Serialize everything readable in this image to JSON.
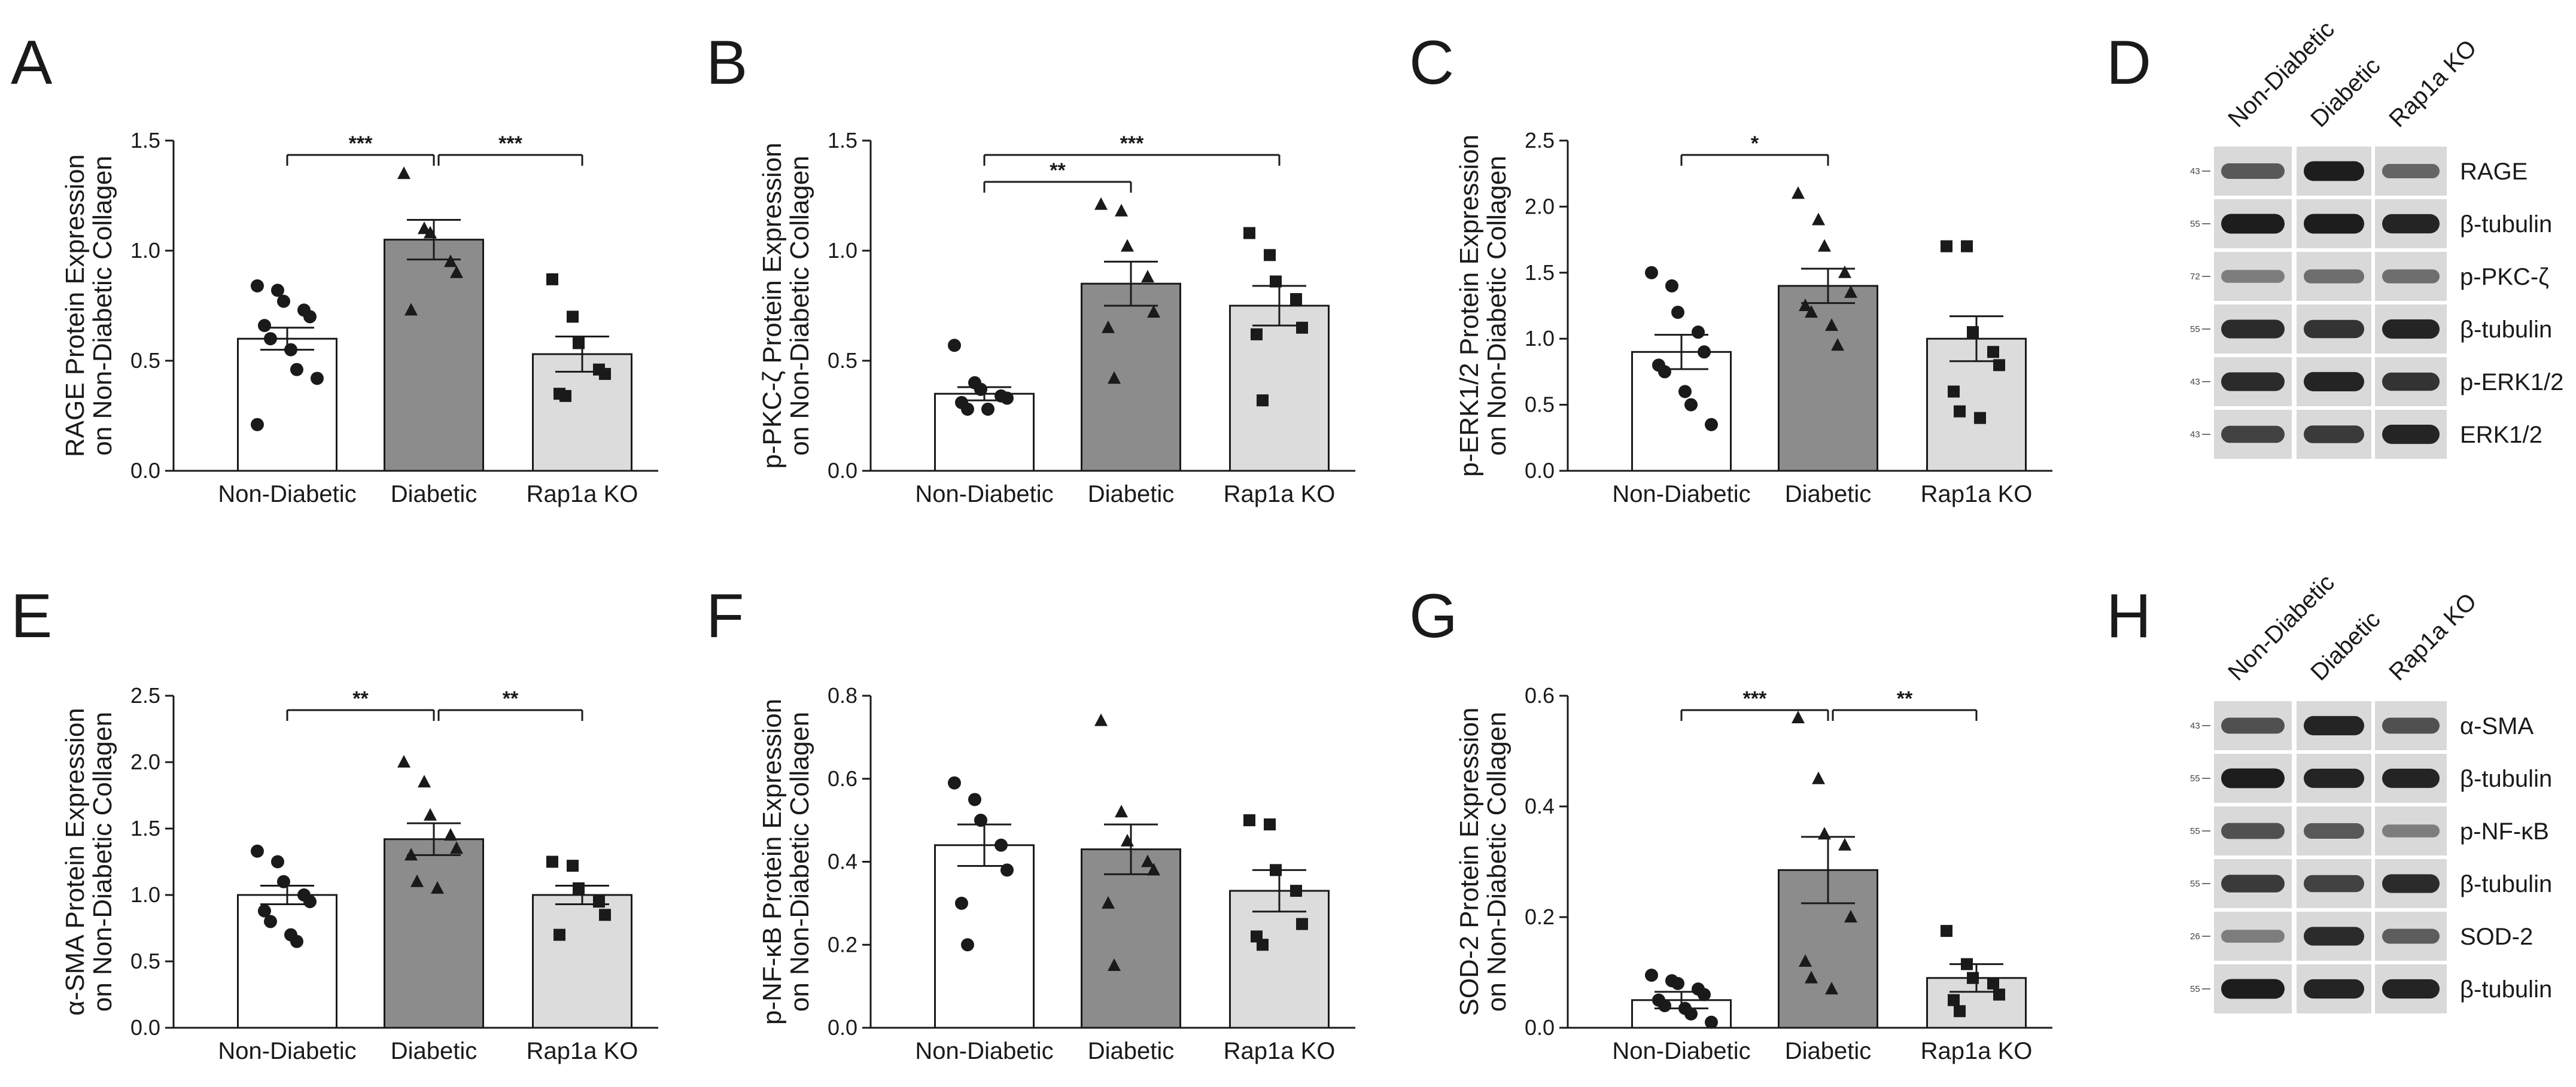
{
  "chart_data": [
    {
      "panel": "A",
      "type": "bar",
      "categories": [
        "Non-Diabetic",
        "Diabetic",
        "Rap1a KO"
      ],
      "values": [
        0.6,
        1.05,
        0.53
      ],
      "sem": [
        0.05,
        0.09,
        0.08
      ],
      "ylabel_1": "RAGE Protein Expression",
      "ylabel_2": "on Non-Diabetic Collagen",
      "ylim": [
        0,
        1.5
      ],
      "yticks": [
        "0.0",
        "0.5",
        "1.0",
        "1.5"
      ],
      "points": [
        [
          0.84,
          0.82,
          0.77,
          0.73,
          0.7,
          0.66,
          0.6,
          0.55,
          0.46,
          0.42,
          0.21
        ],
        [
          1.35,
          1.1,
          1.08,
          0.95,
          0.9,
          0.73
        ],
        [
          0.87,
          0.7,
          0.58,
          0.46,
          0.44,
          0.35,
          0.34
        ]
      ],
      "significance": [
        {
          "from": 0,
          "to": 1,
          "label": "***"
        },
        {
          "from": 1,
          "to": 2,
          "label": "***"
        }
      ]
    },
    {
      "panel": "B",
      "type": "bar",
      "categories": [
        "Non-Diabetic",
        "Diabetic",
        "Rap1a KO"
      ],
      "values": [
        0.35,
        0.85,
        0.75
      ],
      "sem": [
        0.03,
        0.1,
        0.09
      ],
      "ylabel_1": "p-PKC-ζ Protein Expression",
      "ylabel_2": "on Non-Diabetic Collagen",
      "ylim": [
        0,
        1.5
      ],
      "yticks": [
        "0.0",
        "0.5",
        "1.0",
        "1.5"
      ],
      "points": [
        [
          0.57,
          0.4,
          0.37,
          0.34,
          0.33,
          0.31,
          0.28,
          0.28
        ],
        [
          1.21,
          1.18,
          1.02,
          0.88,
          0.72,
          0.65,
          0.42
        ],
        [
          1.08,
          0.98,
          0.86,
          0.78,
          0.65,
          0.62,
          0.32
        ]
      ],
      "significance": [
        {
          "from": 0,
          "to": 1,
          "label": "**"
        },
        {
          "from": 0,
          "to": 2,
          "label": "***"
        }
      ]
    },
    {
      "panel": "C",
      "type": "bar",
      "categories": [
        "Non-Diabetic",
        "Diabetic",
        "Rap1a KO"
      ],
      "values": [
        0.9,
        1.4,
        1.0
      ],
      "sem": [
        0.13,
        0.13,
        0.17
      ],
      "ylabel_1": "p-ERK1/2 Protein Expression",
      "ylabel_2": "on Non-Diabetic Collagen",
      "ylim": [
        0,
        2.5
      ],
      "yticks": [
        "0.0",
        "0.5",
        "1.0",
        "1.5",
        "2.0",
        "2.5"
      ],
      "points": [
        [
          1.5,
          1.4,
          1.2,
          1.05,
          0.9,
          0.8,
          0.75,
          0.6,
          0.5,
          0.35
        ],
        [
          2.1,
          1.9,
          1.7,
          1.5,
          1.35,
          1.25,
          1.2,
          1.1,
          0.95
        ],
        [
          1.7,
          1.7,
          1.05,
          0.9,
          0.8,
          0.6,
          0.45,
          0.4
        ]
      ],
      "significance": [
        {
          "from": 0,
          "to": 1,
          "label": "*"
        }
      ]
    },
    {
      "panel": "E",
      "type": "bar",
      "categories": [
        "Non-Diabetic",
        "Diabetic",
        "Rap1a KO"
      ],
      "values": [
        1.0,
        1.42,
        1.0
      ],
      "sem": [
        0.07,
        0.12,
        0.07
      ],
      "ylabel_1": "α-SMA Protein Expression",
      "ylabel_2": "on Non-Diabetic Collagen",
      "ylim": [
        0,
        2.5
      ],
      "yticks": [
        "0.0",
        "0.5",
        "1.0",
        "1.5",
        "2.0",
        "2.5"
      ],
      "points": [
        [
          1.33,
          1.25,
          1.1,
          1.0,
          0.95,
          0.88,
          0.8,
          0.7,
          0.65
        ],
        [
          2.0,
          1.85,
          1.6,
          1.45,
          1.35,
          1.3,
          1.1,
          1.05
        ],
        [
          1.25,
          1.22,
          1.05,
          0.95,
          0.85,
          0.7
        ]
      ],
      "significance": [
        {
          "from": 0,
          "to": 1,
          "label": "**"
        },
        {
          "from": 1,
          "to": 2,
          "label": "**"
        }
      ]
    },
    {
      "panel": "F",
      "type": "bar",
      "categories": [
        "Non-Diabetic",
        "Diabetic",
        "Rap1a KO"
      ],
      "values": [
        0.44,
        0.43,
        0.33
      ],
      "sem": [
        0.05,
        0.06,
        0.05
      ],
      "ylabel_1": "p-NF-κB Protein Expression",
      "ylabel_2": "on Non-Diabetic Collagen",
      "ylim": [
        0,
        0.8
      ],
      "yticks": [
        "0.0",
        "0.2",
        "0.4",
        "0.6",
        "0.8"
      ],
      "points": [
        [
          0.59,
          0.55,
          0.5,
          0.44,
          0.38,
          0.3,
          0.2
        ],
        [
          0.74,
          0.52,
          0.45,
          0.4,
          0.38,
          0.3,
          0.15
        ],
        [
          0.5,
          0.49,
          0.38,
          0.33,
          0.25,
          0.22,
          0.2
        ]
      ],
      "significance": []
    },
    {
      "panel": "G",
      "type": "bar",
      "categories": [
        "Non-Diabetic",
        "Diabetic",
        "Rap1a KO"
      ],
      "values": [
        0.05,
        0.285,
        0.09
      ],
      "sem": [
        0.015,
        0.06,
        0.025
      ],
      "ylabel_1": "SOD-2 Protein Expression",
      "ylabel_2": "on Non-Diabetic Collagen",
      "ylim": [
        0,
        0.6
      ],
      "yticks": [
        "0.0",
        "0.2",
        "0.4",
        "0.6"
      ],
      "points": [
        [
          0.095,
          0.085,
          0.08,
          0.07,
          0.06,
          0.05,
          0.04,
          0.035,
          0.025,
          0.01
        ],
        [
          0.56,
          0.45,
          0.35,
          0.33,
          0.2,
          0.12,
          0.09,
          0.07
        ],
        [
          0.175,
          0.115,
          0.09,
          0.08,
          0.06,
          0.05,
          0.03
        ]
      ],
      "significance": [
        {
          "from": 0,
          "to": 1,
          "label": "***"
        },
        {
          "from": 1,
          "to": 2,
          "label": "**"
        }
      ]
    }
  ],
  "panel_letters": {
    "A": "A",
    "B": "B",
    "C": "C",
    "D": "D",
    "E": "E",
    "F": "F",
    "G": "G",
    "H": "H"
  },
  "blots": [
    {
      "panel": "D",
      "columns": [
        "Non-Diabetic",
        "Diabetic",
        "Rap1a KO"
      ],
      "rows": [
        {
          "label": "RAGE",
          "mw": "43",
          "intensity": [
            0.55,
            0.95,
            0.45
          ]
        },
        {
          "label": "β-tubulin",
          "mw": "55",
          "intensity": [
            0.95,
            0.95,
            0.9
          ]
        },
        {
          "label": "p-PKC-ζ",
          "mw": "72",
          "intensity": [
            0.3,
            0.4,
            0.4
          ]
        },
        {
          "label": "β-tubulin",
          "mw": "55",
          "intensity": [
            0.85,
            0.8,
            0.9
          ]
        },
        {
          "label": "p-ERK1/2",
          "mw": "43",
          "intensity": [
            0.85,
            0.9,
            0.8
          ]
        },
        {
          "label": "ERK1/2",
          "mw": "43",
          "intensity": [
            0.7,
            0.75,
            0.9
          ]
        }
      ]
    },
    {
      "panel": "H",
      "columns": [
        "Non-Diabetic",
        "Diabetic",
        "Rap1a KO"
      ],
      "rows": [
        {
          "label": "α-SMA",
          "mw": "43",
          "intensity": [
            0.6,
            0.9,
            0.6
          ]
        },
        {
          "label": "β-tubulin",
          "mw": "55",
          "intensity": [
            0.95,
            0.9,
            0.9
          ]
        },
        {
          "label": "p-NF-κB",
          "mw": "55",
          "intensity": [
            0.6,
            0.55,
            0.3
          ]
        },
        {
          "label": "β-tubulin",
          "mw": "55",
          "intensity": [
            0.75,
            0.7,
            0.85
          ]
        },
        {
          "label": "SOD-2",
          "mw": "26",
          "intensity": [
            0.3,
            0.85,
            0.5
          ]
        },
        {
          "label": "β-tubulin",
          "mw": "55",
          "intensity": [
            0.95,
            0.9,
            0.9
          ]
        }
      ]
    }
  ],
  "colors": {
    "axis": "#1a1a1a",
    "bar_fills": [
      "#ffffff",
      "#8c8c8c",
      "#dcdcdc"
    ],
    "blot_bg": "#d9d9d9",
    "band": "#151515"
  },
  "markers": [
    "circle",
    "triangle",
    "square"
  ]
}
